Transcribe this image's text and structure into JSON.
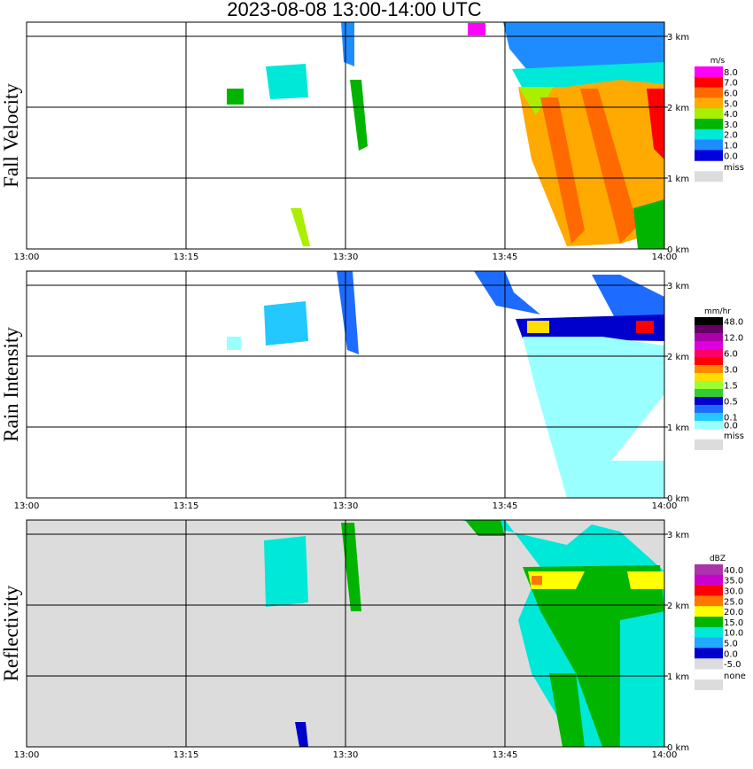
{
  "title": "2023-08-08  13:00-14:00 UTC",
  "x_ticks": [
    "13:00",
    "13:15",
    "13:30",
    "13:45",
    "14:00"
  ],
  "y_ticks": [
    "0 km",
    "1 km",
    "2 km",
    "3 km"
  ],
  "colors": {
    "missing": "#dcdcdc",
    "grid": "#000000"
  },
  "chart_data": [
    {
      "type": "heatmap",
      "title": "Fall Velocity",
      "ylabel": "Fall Velocity",
      "x_range": [
        "13:00",
        "14:00"
      ],
      "y_range_km": [
        0,
        3.2
      ],
      "legend_unit": "m/s",
      "legend_levels": [
        "8.0",
        "7.0",
        "6.0",
        "5.0",
        "4.0",
        "3.0",
        "2.0",
        "1.0",
        "0.0"
      ],
      "legend_colors": [
        "#ff00ff",
        "#ff0000",
        "#ff6a00",
        "#ffaa00",
        "#aaee00",
        "#00b400",
        "#00e8d8",
        "#1e8cff",
        "#0000dd"
      ],
      "missing_label": "miss",
      "background_missing": false
    },
    {
      "type": "heatmap",
      "title": "Rain Intensity",
      "ylabel": "Rain Intensity",
      "x_range": [
        "13:00",
        "14:00"
      ],
      "y_range_km": [
        0,
        3.2
      ],
      "legend_unit": "mm/hr",
      "legend_levels": [
        "48.0",
        "",
        "12.0",
        "",
        "6.0",
        "",
        "3.0",
        "",
        "1.5",
        "",
        "0.5",
        "",
        "0.1",
        "0.0"
      ],
      "legend_colors": [
        "#000000",
        "#660066",
        "#aa00aa",
        "#dd00dd",
        "#ff0066",
        "#ff0000",
        "#ff8800",
        "#ffdd00",
        "#99ff33",
        "#33cc33",
        "#0000cc",
        "#1e6cff",
        "#22c8ff",
        "#99ffff"
      ],
      "missing_label": "miss",
      "background_missing": false
    },
    {
      "type": "heatmap",
      "title": "Reflectivity",
      "ylabel": "Reflectivity",
      "x_range": [
        "13:00",
        "14:00"
      ],
      "y_range_km": [
        0,
        3.2
      ],
      "legend_unit": "dBZ",
      "legend_levels": [
        "40.0",
        "35.0",
        "30.0",
        "25.0",
        "20.0",
        "15.0",
        "10.0",
        "5.0",
        "0.0",
        "-5.0"
      ],
      "legend_colors": [
        "#aa33aa",
        "#cc00cc",
        "#ff0000",
        "#ff7700",
        "#ffff00",
        "#00b400",
        "#00e8d8",
        "#22a8ff",
        "#0000cc",
        "#dcdcdc"
      ],
      "missing_label": "none",
      "background_missing": true
    }
  ]
}
